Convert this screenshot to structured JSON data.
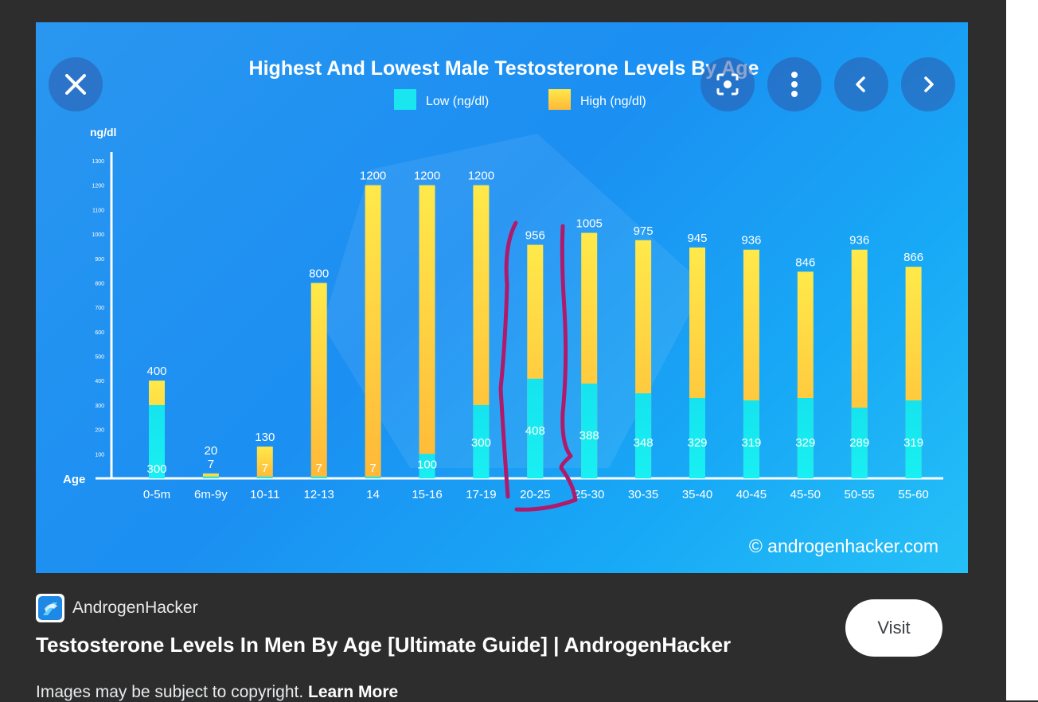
{
  "viewer": {
    "controls": {
      "close_icon": "close-icon",
      "lens_icon": "lens-icon",
      "more_icon": "more-vertical-icon",
      "prev_icon": "chevron-left-icon",
      "next_icon": "chevron-right-icon"
    }
  },
  "chart_data": {
    "type": "bar",
    "title": "Highest And Lowest Male Testosterone Levels By Age",
    "ylabel": "ng/dl",
    "xlabel": "Age",
    "ylim": [
      0,
      1300
    ],
    "yticks": [
      100,
      200,
      300,
      400,
      500,
      600,
      700,
      800,
      900,
      1000,
      1100,
      1200,
      1300
    ],
    "categories": [
      "0-5m",
      "6m-9y",
      "10-11",
      "12-13",
      "14",
      "15-16",
      "17-19",
      "20-25",
      "25-30",
      "30-35",
      "35-40",
      "40-45",
      "45-50",
      "50-55",
      "55-60"
    ],
    "series": [
      {
        "name": "Low (ng/dl)",
        "color": "#19e6ee",
        "values": [
          300,
          7,
          7,
          7,
          7,
          100,
          300,
          408,
          388,
          348,
          329,
          319,
          329,
          289,
          319
        ]
      },
      {
        "name": "High (ng/dl)",
        "color": "#ffd84a",
        "values": [
          400,
          20,
          130,
          800,
          1200,
          1200,
          1200,
          956,
          1005,
          975,
          945,
          936,
          846,
          936,
          866
        ]
      }
    ],
    "low_labels": [
      "300",
      "",
      "7",
      "7",
      "7",
      "100",
      "300",
      "408",
      "388",
      "348",
      "329",
      "319",
      "329",
      "289",
      "319"
    ],
    "high_labels": [
      "400",
      "20\n7",
      "130",
      "800",
      "1200",
      "1200",
      "1200",
      "956",
      "1005",
      "975",
      "945",
      "936",
      "846",
      "936",
      "866"
    ],
    "watermark": "© androgenhacker.com",
    "annotation": "hand-drawn magenta bracket highlighting the 20-25 bar"
  },
  "source": {
    "name": "AndrogenHacker",
    "page_title": "Testosterone Levels In Men By Age [Ultimate Guide] | AndrogenHacker",
    "visit_label": "Visit"
  },
  "footer": {
    "note": "Images may be subject to copyright.",
    "learn_more": "Learn More"
  }
}
